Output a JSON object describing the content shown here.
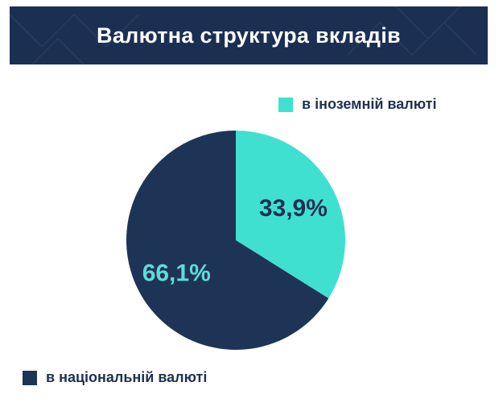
{
  "title": "Валютна структура вкладів",
  "colors": {
    "header_bg": "#1b2f52",
    "national": "#1e3457",
    "foreign": "#40e0d0",
    "label_on_national": "#5fdcd8",
    "label_on_foreign": "#1e3152"
  },
  "chart_data": {
    "type": "pie",
    "title": "Валютна структура вкладів",
    "slices": [
      {
        "name": "в іноземній валюті",
        "value": 33.9,
        "label": "33,9%",
        "color": "#40e0d0"
      },
      {
        "name": "в національній валюті",
        "value": 66.1,
        "label": "66,1%",
        "color": "#1e3457"
      }
    ],
    "legend": "split: top-right and bottom-left"
  }
}
